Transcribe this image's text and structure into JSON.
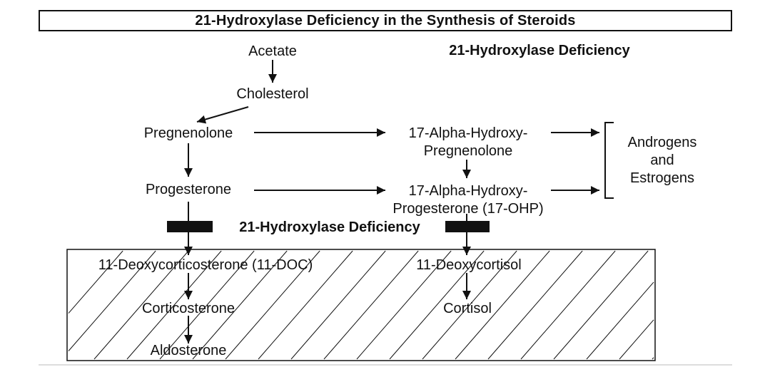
{
  "title": "21-Hydroxylase Deficiency in the Synthesis of Steroids",
  "heading": "21-Hydroxylase Deficiency",
  "block_label": "21-Hydroxylase Deficiency",
  "nodes": {
    "acetate": "Acetate",
    "cholesterol": "Cholesterol",
    "pregnenolone": "Pregnenolone",
    "progesterone": "Progesterone",
    "hydroxy_pregnenolone": "17-Alpha-Hydroxy-\nPregnenolone",
    "hydroxy_progesterone": "17-Alpha-Hydroxy-\nProgesterone (17-OHP)",
    "androgens_estrogens": "Androgens\nand\nEstrogens",
    "deoxycorticosterone": "11-Deoxycorticosterone (11-DOC)",
    "corticosterone": "Corticosterone",
    "aldosterone": "Aldosterone",
    "deoxycortisol": "11-Deoxycortisol",
    "cortisol": "Cortisol"
  }
}
